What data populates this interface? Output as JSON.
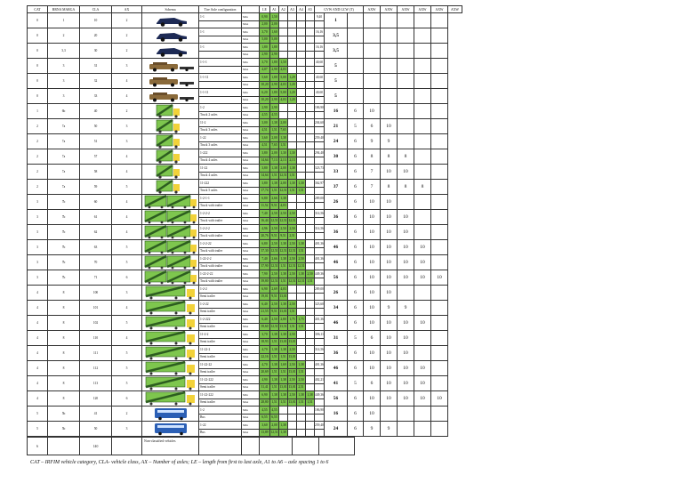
{
  "headers": [
    "CAT",
    "BRNA MARGA",
    "CLA",
    "AX",
    "Schema",
    "Tire Axle configuration",
    "",
    "LE",
    "A1",
    "A2",
    "A3",
    "A4",
    "A5",
    "GVW AND GCW (T)",
    "",
    "AXW",
    "AXW",
    "AXW",
    "AXW",
    "AXW",
    "AXW"
  ],
  "rows": [
    {
      "c": [
        "0",
        "1",
        "10",
        "2"
      ],
      "icon": "car",
      "cfg": [
        "1-1",
        ""
      ],
      "g": [
        [
          " 0,90",
          "1,50"
        ],
        [
          "2,00",
          "2,00"
        ]
      ],
      "t": [
        "9,40",
        ""
      ],
      "w": "1",
      "ax": []
    },
    {
      "c": [
        "0",
        "2",
        "20",
        "2"
      ],
      "icon": "car",
      "cfg": [
        "1-1",
        ""
      ],
      "g": [
        [
          "3,70",
          "1,60"
        ],
        [
          "5,00",
          "5,00"
        ]
      ],
      "t": [
        "16,16",
        ""
      ],
      "w": "3,5",
      "ax": []
    },
    {
      "c": [
        "0",
        "3,3",
        "30",
        "2"
      ],
      "icon": "car",
      "cfg": [
        "1-1",
        ""
      ],
      "g": [
        [
          "1,80",
          "1,80"
        ],
        [
          "2,90",
          "2,90"
        ]
      ],
      "t": [
        "16,16",
        ""
      ],
      "w": "3,5",
      "ax": []
    },
    {
      "c": [
        "0",
        "3",
        "31",
        "3"
      ],
      "icon": "suv",
      "cfg": [
        "1-1-1",
        ""
      ],
      "g": [
        [
          "3,70",
          "1,80",
          "1,50"
        ],
        [
          "4,07",
          "2,90",
          "4,03"
        ]
      ],
      "t": [
        "40,60",
        ""
      ],
      "w": "5",
      "ax": []
    },
    {
      "c": [
        "0",
        "3",
        "32",
        "4"
      ],
      "icon": "suv",
      "cfg": [
        "1-1-11",
        ""
      ],
      "g": [
        [
          "5,60",
          "1,80",
          "5,00",
          "1,29"
        ],
        [
          "10,20",
          "2,90",
          "4,03",
          "1,20"
        ]
      ],
      "t": [
        "40,60",
        ""
      ],
      "w": "5",
      "ax": []
    },
    {
      "c": [
        "0",
        "3",
        "33",
        "4"
      ],
      "icon": "suv",
      "cfg": [
        "1-1-11",
        ""
      ],
      "g": [
        [
          "6,20",
          "1,80",
          "5,00",
          "1,20"
        ],
        [
          "10,20",
          "2,90",
          "4,03",
          "1,20"
        ]
      ],
      "t": [
        "40,60",
        ""
      ],
      "w": "5",
      "ax": []
    },
    {
      "c": [
        "1",
        "6b",
        "40",
        "2"
      ],
      "icon": "truck",
      "cfg": [
        "1-2",
        "Truck 2 axles"
      ],
      "g": [
        [
          "2,90",
          "2,90"
        ],
        [
          "4,55",
          "4,55"
        ]
      ],
      "t": [
        "186,90",
        ""
      ],
      "w": "16",
      "ax": [
        "6",
        "10"
      ]
    },
    {
      "c": [
        "2",
        "7a",
        "50",
        "3"
      ],
      "icon": "truck",
      "cfg": [
        "11-2",
        "Truck 3 axles"
      ],
      "g": [
        [
          "3,00",
          "1,38",
          "2,00"
        ],
        [
          "4,51",
          "1,51",
          "7,65"
        ]
      ],
      "t": [
        "204,60",
        ""
      ],
      "w": "21",
      "ax": [
        "5",
        "6",
        "10"
      ]
    },
    {
      "c": [
        "2",
        "7a",
        "51",
        "3"
      ],
      "icon": "truck",
      "cfg": [
        "1-22",
        "Truck 3 axles"
      ],
      "g": [
        [
          "3,60",
          "2,00",
          "1,38"
        ],
        [
          "4,51",
          "7,65",
          "1,51"
        ]
      ],
      "t": [
        "259,40",
        ""
      ],
      "w": "24",
      "ax": [
        "6",
        "9",
        "9"
      ]
    },
    {
      "c": [
        "2",
        "7a",
        "57",
        "4"
      ],
      "icon": "truck",
      "cfg": [
        "1-222",
        "Truck 4 axles"
      ],
      "g": [
        [
          "3,80",
          "2,00",
          "1,30",
          "1,30"
        ],
        [
          "14,64",
          "7,13",
          "2,13",
          "2,13"
        ]
      ],
      "t": [
        "294,40",
        ""
      ],
      "w": "30",
      "ax": [
        "6",
        "8",
        "8",
        "8"
      ]
    },
    {
      "c": [
        "2",
        "7a",
        "58",
        "4"
      ],
      "icon": "truck",
      "cfg": [
        "11-22",
        "Truck 4 axles"
      ],
      "g": [
        [
          "3,80",
          "1,38",
          "2,00",
          "1,38"
        ],
        [
          "14,64",
          "1,51",
          "12,51",
          "1,51"
        ]
      ],
      "t": [
        "323,73",
        ""
      ],
      "w": "33",
      "ax": [
        "6",
        "7",
        "10",
        "10"
      ]
    },
    {
      "c": [
        "2",
        "7a",
        "59",
        "5"
      ],
      "icon": "truck",
      "cfg": [
        "11-222",
        "Truck 5 axles"
      ],
      "g": [
        [
          "3,80",
          "1,38",
          "2,00",
          "1,30",
          "1,30"
        ],
        [
          "17,74",
          "1,51",
          "12,51",
          "1,51",
          "1,51"
        ]
      ],
      "t": [
        "362,97",
        ""
      ],
      "w": "37",
      "ax": [
        "6",
        "7",
        "8",
        "8",
        "8"
      ]
    },
    {
      "c": [
        "3",
        "7b",
        "60",
        "4"
      ],
      "icon": "trailer",
      "cfg": [
        "1-2-1-1",
        "Truck with trailer"
      ],
      "g": [
        [
          "6,80",
          "2,66",
          "1,38"
        ],
        [
          "11,52",
          "9,51",
          "4,03"
        ]
      ],
      "t": [
        "289,00",
        ""
      ],
      "w": "26",
      "ax": [
        "6",
        "10",
        "10"
      ]
    },
    {
      "c": [
        "3",
        "7b",
        "61",
        "4"
      ],
      "icon": "trailer",
      "cfg": [
        "1-2-2-2",
        "Truck with trailer"
      ],
      "g": [
        [
          "7,40",
          "2,50",
          "2,50",
          "2,50"
        ],
        [
          "16,44",
          "12,51",
          "12,51",
          "12,51"
        ]
      ],
      "t": [
        "314,56",
        ""
      ],
      "w": "36",
      "ax": [
        "6",
        "10",
        "10",
        "10"
      ]
    },
    {
      "c": [
        "3",
        "7b",
        "62",
        "4"
      ],
      "icon": "trailer",
      "cfg": [
        "1-2-2-2",
        "Truck with trailer"
      ],
      "g": [
        [
          "4,96",
          "2,50",
          "2,50",
          "2,50"
        ],
        [
          "20,76",
          "9,51",
          "9,51",
          "2,51"
        ]
      ],
      "t": [
        "314,56",
        ""
      ],
      "w": "36",
      "ax": [
        "6",
        "10",
        "10",
        "10"
      ]
    },
    {
      "c": [
        "3",
        "7b",
        "63",
        "5"
      ],
      "icon": "trailer",
      "cfg": [
        "1-2-2-22",
        "Truck with trailer"
      ],
      "g": [
        [
          "6,80",
          "2,50",
          "1,38",
          "2,50",
          "1,38"
        ],
        [
          "37,30",
          "12,51",
          "12,51",
          "12,51",
          "1,51"
        ]
      ],
      "t": [
        "401,36",
        ""
      ],
      "w": "46",
      "ax": [
        "6",
        "10",
        "10",
        "10",
        "10"
      ]
    },
    {
      "c": [
        "3",
        "7b",
        "70",
        "5"
      ],
      "icon": "trailer",
      "cfg": [
        "1-22-2-2",
        "Truck with trailer"
      ],
      "g": [
        [
          "7,40",
          "2,66",
          "1,38",
          "2,50",
          "2,50"
        ],
        [
          "37,90",
          "12,51",
          "1,51",
          "12,51",
          "12,51"
        ]
      ],
      "t": [
        "401,36",
        ""
      ],
      "w": "46",
      "ax": [
        "6",
        "10",
        "10",
        "10",
        "10"
      ]
    },
    {
      "c": [
        "3",
        "7b",
        "71",
        "6"
      ],
      "icon": "trailer",
      "cfg": [
        "1-22-2-22",
        "Truck with trailer"
      ],
      "g": [
        [
          "7,90",
          "2,50",
          "1,38",
          "2,50",
          "1,38",
          "2,50"
        ],
        [
          "39,80",
          "12,51",
          "1,51",
          "12,51",
          "12,51",
          "1,51"
        ]
      ],
      "t": [
        "449,36",
        ""
      ],
      "w": "56",
      "ax": [
        "6",
        "10",
        "10",
        "10",
        "10",
        "10"
      ]
    },
    {
      "c": [
        "4",
        "8",
        "100",
        "3"
      ],
      "icon": "semi",
      "cfg": [
        "1-2-2",
        "Semi trailer"
      ],
      "g": [
        [
          "6,90",
          "2,69",
          "4,03"
        ],
        [
          "19,01",
          "9,51",
          "13,01"
        ]
      ],
      "t": [
        "289,00",
        ""
      ],
      "w": "26",
      "ax": [
        "6",
        "10",
        "10"
      ]
    },
    {
      "c": [
        "4",
        "8",
        "101",
        "4"
      ],
      "icon": "semi",
      "cfg": [
        "1-2-22",
        "Semi trailer"
      ],
      "g": [
        [
          "6,40",
          "2,50",
          "1,38",
          "2,50"
        ],
        [
          "21,55",
          "9,51",
          "13,01",
          "1,51"
        ]
      ],
      "t": [
        "323,60",
        ""
      ],
      "w": "34",
      "ax": [
        "6",
        "10",
        "9",
        "9"
      ]
    },
    {
      "c": [
        "4",
        "8",
        "102",
        "5"
      ],
      "icon": "semi",
      "cfg": [
        "1-2-222",
        "Semi trailer"
      ],
      "g": [
        [
          "6,40",
          "2,50",
          "2,80",
          "1,75",
          "1,75"
        ],
        [
          "39,60",
          "12,51",
          "13,51",
          "1,51",
          "1,51"
        ]
      ],
      "t": [
        "401,36",
        ""
      ],
      "w": "46",
      "ax": [
        "6",
        "10",
        "10",
        "10",
        "10"
      ]
    },
    {
      "c": [
        "4",
        "8",
        "110",
        "4"
      ],
      "icon": "semi",
      "cfg": [
        "11-2-2",
        "Semi trailer"
      ],
      "g": [
        [
          "3,70",
          "1,38",
          "1,38",
          "2,50"
        ],
        [
          "18,93",
          "1,51",
          "13,01",
          "13,01"
        ]
      ],
      "t": [
        "306,11",
        ""
      ],
      "w": "31",
      "ax": [
        "5",
        "6",
        "10",
        "10"
      ]
    },
    {
      "c": [
        "4",
        "8",
        "111",
        "5"
      ],
      "icon": "semi",
      "cfg": [
        "11-22-2",
        "Semi trailer"
      ],
      "g": [
        [
          "4,70",
          "1,38",
          "1,38",
          "2,50"
        ],
        [
          "22,16",
          "1,51",
          "1,51",
          "13,01"
        ]
      ],
      "t": [
        "314,56",
        ""
      ],
      "w": "36",
      "ax": [
        "6",
        "10",
        "10",
        "10"
      ]
    },
    {
      "c": [
        "4",
        "8",
        "112",
        "5"
      ],
      "icon": "semi",
      "cfg": [
        "11-22-22",
        "Semi trailer"
      ],
      "g": [
        [
          "4,70",
          "1,38",
          "1,69",
          "2,50",
          "1,38"
        ],
        [
          "20,69",
          "1,51",
          "1,51",
          "13,01",
          "1,51"
        ]
      ],
      "t": [
        "401,36",
        ""
      ],
      "w": "46",
      "ax": [
        "6",
        "10",
        "10",
        "10",
        "10"
      ]
    },
    {
      "c": [
        "4",
        "8",
        "113",
        "5"
      ],
      "icon": "semi",
      "cfg": [
        "11-22-222",
        "Semi trailer"
      ],
      "g": [
        [
          "4,90",
          "1,38",
          "1,38",
          "2,50",
          "2,50"
        ],
        [
          "31,41",
          "1,51",
          "13,01",
          "13,01",
          "2,51"
        ]
      ],
      "t": [
        "402,21",
        ""
      ],
      "w": "41",
      "ax": [
        "5",
        "6",
        "10",
        "10",
        "10"
      ]
    },
    {
      "c": [
        "4",
        "8",
        "120",
        "6"
      ],
      "icon": "semi",
      "cfg": [
        "11-22-222",
        "Semi trailer"
      ],
      "g": [
        [
          "6,90",
          "1,38",
          "1,38",
          "2,50",
          "1,38",
          "1,38"
        ],
        [
          "28,80",
          "1,51",
          "1,51",
          "13,01",
          "1,51",
          "1,51"
        ]
      ],
      "t": [
        "449,36",
        ""
      ],
      "w": "56",
      "ax": [
        "6",
        "10",
        "10",
        "10",
        "10",
        "10"
      ]
    },
    {
      "c": [
        "5",
        "5b",
        "41",
        "2"
      ],
      "icon": "bus",
      "cfg": [
        "1-2",
        "Bus"
      ],
      "g": [
        [
          "4,55",
          "4,55"
        ],
        [
          "6,55",
          "6,55"
        ]
      ],
      "t": [
        "186,90",
        ""
      ],
      "w": "16",
      "ax": [
        "6",
        "10"
      ]
    },
    {
      "c": [
        "5",
        "5b",
        "50",
        "3"
      ],
      "icon": "bus",
      "cfg": [
        "1-22",
        "Bus"
      ],
      "g": [
        [
          "3,60",
          "2,00",
          "1,38"
        ],
        [
          "13,89",
          "12,51",
          "1,38"
        ]
      ],
      "t": [
        "259,40",
        ""
      ],
      "w": "24",
      "ax": [
        "6",
        "9",
        "9"
      ]
    }
  ],
  "note": {
    "cat": "6",
    "cla": "140",
    "label": "Non-classified vehicles"
  },
  "footnote": "CAT – IRFIM vehicle category, CLA- vehicle class, AX – Number of axles; LE – length from first to last axle, A1 to A6 – axle spacing 1 to 6",
  "colors": {
    "green": "#7ec64e",
    "dark_green": "#4a8f3e",
    "bus_blue": "#2b5fb5",
    "car": "#1d2a55",
    "suv": "#8a6a3a"
  }
}
